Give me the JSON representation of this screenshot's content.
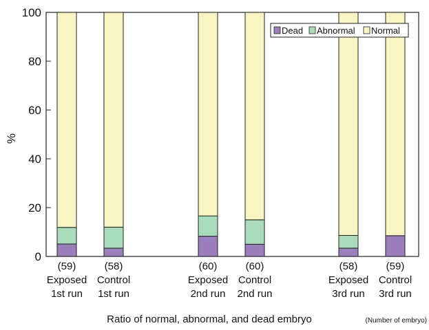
{
  "chart_data": {
    "type": "bar",
    "stacked": true,
    "title": "",
    "xlabel": "Ratio of normal, abnormal, and dead embryo",
    "xlabel_note": "(Number of embryo)",
    "ylabel": "%",
    "ylim": [
      0,
      100
    ],
    "yticks": [
      "0",
      "20",
      "40",
      "60",
      "80",
      "100"
    ],
    "grid": false,
    "legend_position": "top-right",
    "categories": [
      {
        "count": "(59)",
        "line1": "Exposed",
        "line2": "1st run",
        "group": 0
      },
      {
        "count": "(58)",
        "line1": "Control",
        "line2": "1st run",
        "group": 0
      },
      {
        "count": "(60)",
        "line1": "Exposed",
        "line2": "2nd run",
        "group": 1
      },
      {
        "count": "(60)",
        "line1": "Control",
        "line2": "2nd run",
        "group": 1
      },
      {
        "count": "(58)",
        "line1": "Exposed",
        "line2": "3rd run",
        "group": 2
      },
      {
        "count": "(59)",
        "line1": "Control",
        "line2": "3rd run",
        "group": 2
      }
    ],
    "series": [
      {
        "name": "Dead",
        "color": "#9a7fbc",
        "values": [
          5.1,
          3.4,
          8.3,
          5.0,
          3.4,
          8.5
        ]
      },
      {
        "name": "Abnormal",
        "color": "#a8dcbb",
        "values": [
          6.8,
          8.6,
          8.3,
          10.0,
          5.2,
          0
        ]
      },
      {
        "name": "Normal",
        "color": "#f8f5c2",
        "values": [
          88.1,
          88.0,
          83.4,
          85.0,
          91.4,
          91.5
        ]
      }
    ]
  }
}
